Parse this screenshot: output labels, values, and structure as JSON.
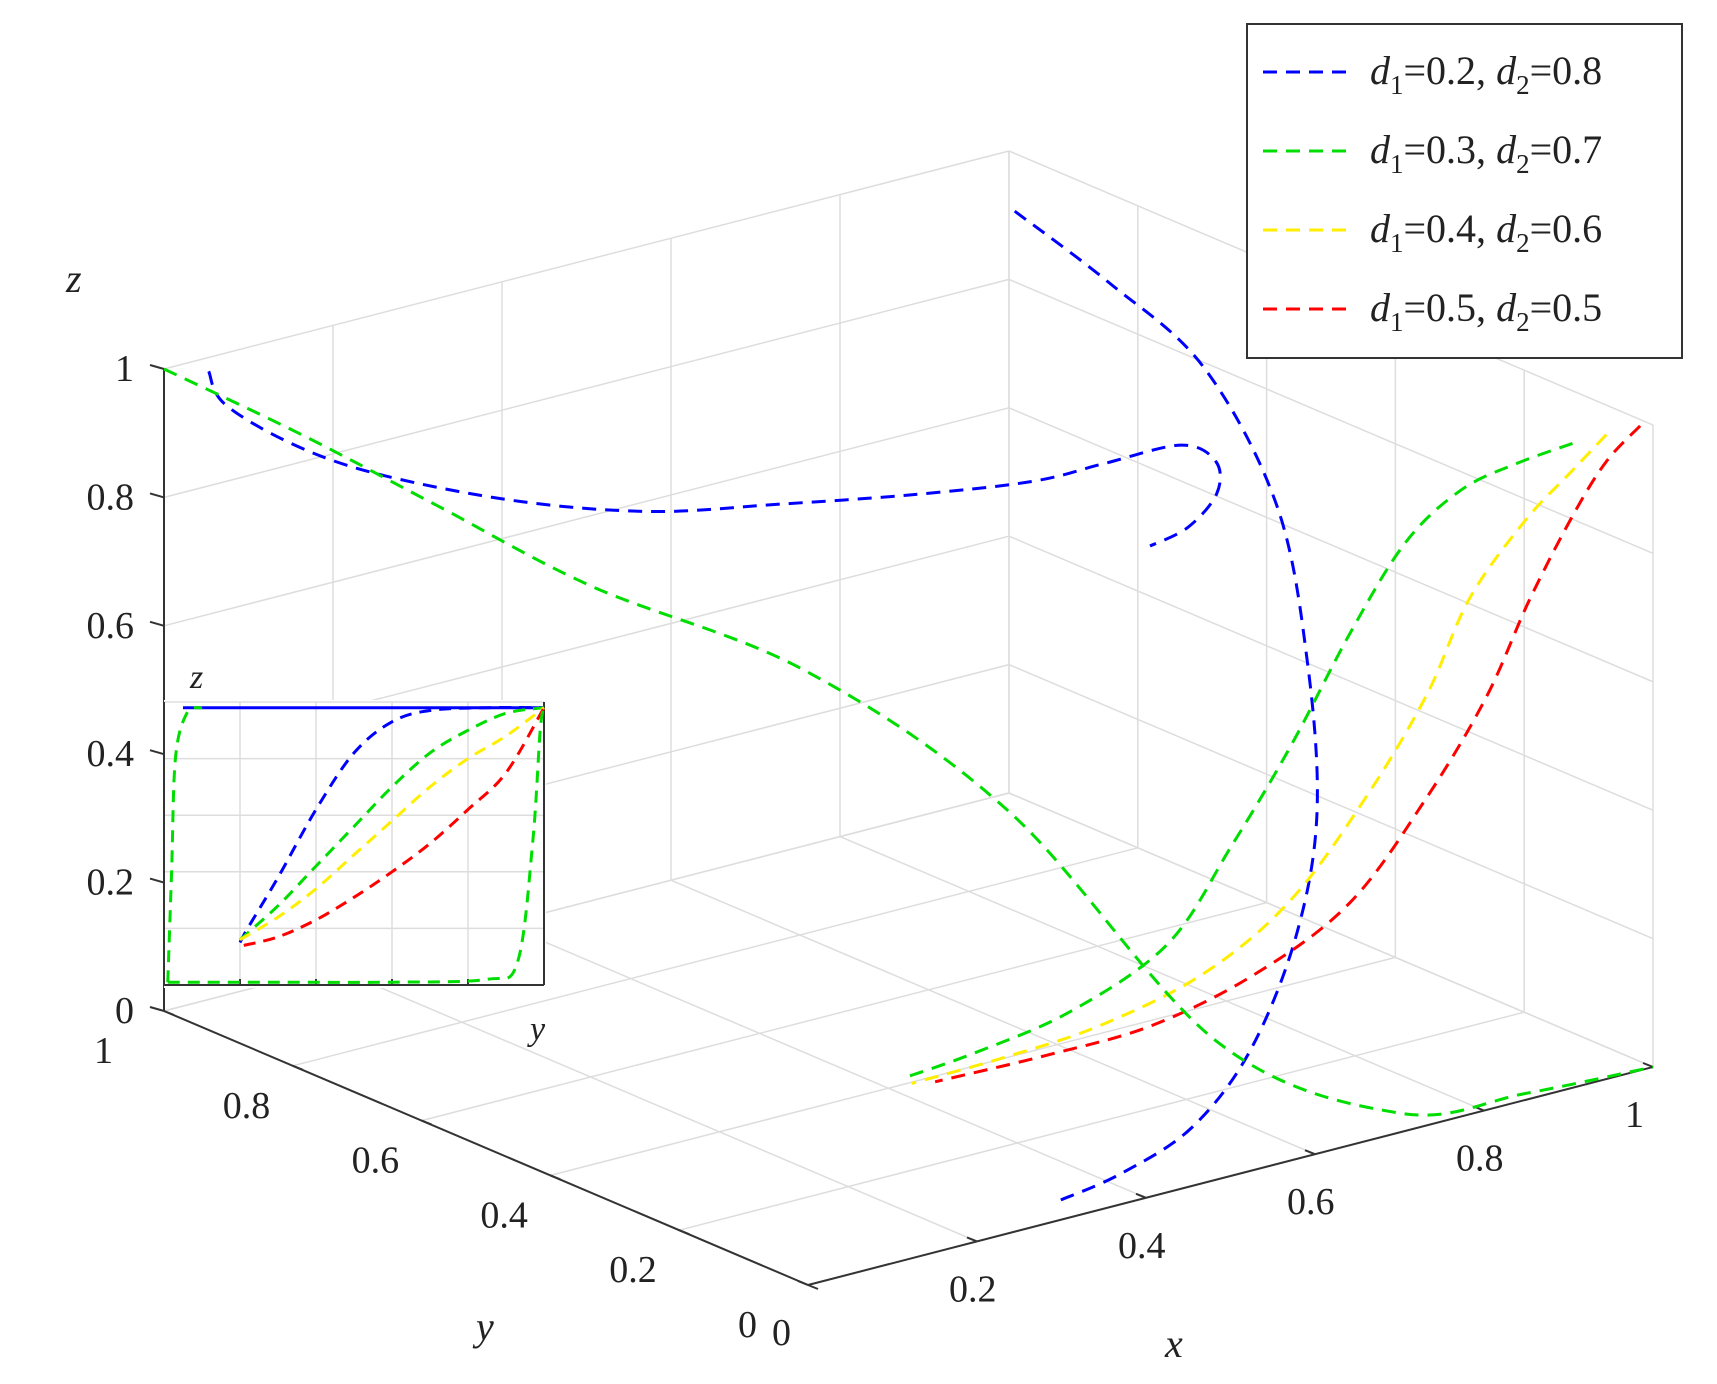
{
  "chart_data": {
    "type": "line",
    "projection": "3d",
    "axes": {
      "x": {
        "label": "x",
        "lim": [
          0,
          1
        ],
        "ticks": [
          "0",
          "0.2",
          "0.4",
          "0.6",
          "0.8",
          "1"
        ]
      },
      "y": {
        "label": "y",
        "lim": [
          0,
          1
        ],
        "ticks": [
          "0",
          "0.2",
          "0.4",
          "0.6",
          "0.8",
          "1"
        ]
      },
      "z": {
        "label": "z",
        "lim": [
          0,
          1
        ],
        "ticks": [
          "0",
          "0.2",
          "0.4",
          "0.6",
          "0.8",
          "1"
        ]
      }
    },
    "grid": true,
    "legend_position": "top-right",
    "legend": [
      {
        "color": "#0000ff",
        "d1": "0.2",
        "d2": "0.8"
      },
      {
        "color": "#00dd00",
        "d1": "0.3",
        "d2": "0.7"
      },
      {
        "color": "#ffee00",
        "d1": "0.4",
        "d2": "0.6"
      },
      {
        "color": "#ff0000",
        "d1": "0.5",
        "d2": "0.5"
      }
    ],
    "series": [
      {
        "color": "#0000ff",
        "points": [
          [
            0.03,
            0.97,
            0.999
          ],
          [
            0.05,
            0.97,
            0.94
          ],
          [
            0.12,
            0.95,
            0.86
          ],
          [
            0.2,
            0.92,
            0.8
          ],
          [
            0.3,
            0.84,
            0.76
          ],
          [
            0.38,
            0.74,
            0.76
          ],
          [
            0.45,
            0.64,
            0.79
          ],
          [
            0.53,
            0.54,
            0.82
          ],
          [
            0.6,
            0.44,
            0.86
          ],
          [
            0.64,
            0.38,
            0.9
          ],
          [
            0.64,
            0.26,
            0.98
          ],
          [
            0.62,
            0.18,
            0.995
          ],
          [
            0.56,
            0.1,
            1
          ],
          [
            0.48,
            0.04,
            1
          ],
          [
            0.42,
            0.02,
            1
          ]
        ]
      },
      {
        "color": "#0000ff",
        "points": [
          [
            0.9,
            0.86,
            1
          ],
          [
            0.89,
            0.7,
            0.96
          ],
          [
            0.88,
            0.54,
            0.9
          ],
          [
            0.86,
            0.4,
            0.75
          ],
          [
            0.82,
            0.3,
            0.56
          ],
          [
            0.77,
            0.22,
            0.38
          ],
          [
            0.7,
            0.16,
            0.24
          ],
          [
            0.6,
            0.1,
            0.12
          ],
          [
            0.5,
            0.06,
            0.05
          ],
          [
            0.4,
            0.04,
            0.02
          ],
          [
            0.32,
            0.03,
            0.01
          ]
        ]
      },
      {
        "color": "#00dd00",
        "points": [
          [
            0.92,
            0.02,
            0.99
          ],
          [
            0.9,
            0.08,
            0.94
          ],
          [
            0.88,
            0.14,
            0.88
          ],
          [
            0.86,
            0.2,
            0.78
          ],
          [
            0.84,
            0.26,
            0.62
          ],
          [
            0.8,
            0.3,
            0.44
          ],
          [
            0.76,
            0.34,
            0.28
          ],
          [
            0.7,
            0.36,
            0.14
          ],
          [
            0.6,
            0.38,
            0.06
          ],
          [
            0.5,
            0.4,
            0.02
          ],
          [
            0.42,
            0.4,
            0.01
          ]
        ]
      },
      {
        "color": "#ffee00",
        "points": [
          [
            0.96,
            0.02,
            0.99
          ],
          [
            0.95,
            0.06,
            0.92
          ],
          [
            0.94,
            0.12,
            0.82
          ],
          [
            0.92,
            0.18,
            0.68
          ],
          [
            0.9,
            0.22,
            0.52
          ],
          [
            0.86,
            0.26,
            0.36
          ],
          [
            0.8,
            0.3,
            0.2
          ],
          [
            0.72,
            0.33,
            0.1
          ],
          [
            0.62,
            0.36,
            0.04
          ],
          [
            0.52,
            0.38,
            0.015
          ],
          [
            0.42,
            0.39,
            0.005
          ]
        ]
      },
      {
        "color": "#ff0000",
        "points": [
          [
            1,
            0.02,
            0.99
          ],
          [
            0.99,
            0.06,
            0.92
          ],
          [
            0.98,
            0.1,
            0.82
          ],
          [
            0.96,
            0.14,
            0.68
          ],
          [
            0.94,
            0.18,
            0.52
          ],
          [
            0.9,
            0.22,
            0.36
          ],
          [
            0.84,
            0.26,
            0.2
          ],
          [
            0.76,
            0.3,
            0.1
          ],
          [
            0.66,
            0.33,
            0.04
          ],
          [
            0.56,
            0.36,
            0.015
          ],
          [
            0.44,
            0.38,
            0.005
          ]
        ]
      },
      {
        "color": "#00dd00",
        "points": [
          [
            0,
            1,
            1
          ],
          [
            0.01,
            0.8,
            0.98
          ],
          [
            0.02,
            0.6,
            0.95
          ],
          [
            0.05,
            0.4,
            0.9
          ],
          [
            0.15,
            0.2,
            0.82
          ],
          [
            0.3,
            0.08,
            0.6
          ],
          [
            0.5,
            0.02,
            0.2
          ],
          [
            0.7,
            0.0,
            0.03
          ],
          [
            0.85,
            0.0,
            0.01
          ],
          [
            1,
            0,
            0
          ]
        ]
      }
    ],
    "inset": {
      "type": "line",
      "xlabel": "y",
      "ylabel": "z",
      "curves": [
        {
          "color": "#0000ff",
          "points": [
            [
              0.05,
              0.98
            ],
            [
              0.2,
              0.98
            ],
            [
              0.4,
              0.98
            ],
            [
              0.6,
              0.98
            ],
            [
              0.8,
              0.98
            ],
            [
              1,
              0.98
            ]
          ]
        },
        {
          "color": "#0000ff",
          "points": [
            [
              0.2,
              0.15
            ],
            [
              0.22,
              0.2
            ],
            [
              0.3,
              0.38
            ],
            [
              0.4,
              0.62
            ],
            [
              0.5,
              0.82
            ],
            [
              0.6,
              0.93
            ],
            [
              0.7,
              0.97
            ],
            [
              0.85,
              0.98
            ],
            [
              1,
              0.98
            ]
          ]
        },
        {
          "color": "#00dd00",
          "points": [
            [
              0.2,
              0.16
            ],
            [
              0.3,
              0.28
            ],
            [
              0.4,
              0.42
            ],
            [
              0.5,
              0.56
            ],
            [
              0.6,
              0.7
            ],
            [
              0.7,
              0.82
            ],
            [
              0.8,
              0.9
            ],
            [
              0.9,
              0.96
            ],
            [
              1,
              0.98
            ]
          ]
        },
        {
          "color": "#ffee00",
          "points": [
            [
              0.2,
              0.16
            ],
            [
              0.3,
              0.24
            ],
            [
              0.4,
              0.34
            ],
            [
              0.5,
              0.46
            ],
            [
              0.6,
              0.58
            ],
            [
              0.7,
              0.7
            ],
            [
              0.8,
              0.8
            ],
            [
              0.9,
              0.88
            ],
            [
              1,
              0.98
            ]
          ]
        },
        {
          "color": "#ff0000",
          "points": [
            [
              0.21,
              0.14
            ],
            [
              0.3,
              0.17
            ],
            [
              0.4,
              0.23
            ],
            [
              0.5,
              0.31
            ],
            [
              0.6,
              0.4
            ],
            [
              0.7,
              0.5
            ],
            [
              0.8,
              0.62
            ],
            [
              0.9,
              0.75
            ],
            [
              1,
              0.98
            ]
          ]
        },
        {
          "color": "#00dd00",
          "points": [
            [
              0.01,
              0.01
            ],
            [
              0.02,
              0.4
            ],
            [
              0.03,
              0.8
            ],
            [
              0.06,
              0.96
            ],
            [
              0.1,
              0.98
            ]
          ]
        },
        {
          "color": "#00dd00",
          "points": [
            [
              0.01,
              0.01
            ],
            [
              0.3,
              0.01
            ],
            [
              0.6,
              0.01
            ],
            [
              0.85,
              0.02
            ],
            [
              0.93,
              0.08
            ],
            [
              0.97,
              0.5
            ],
            [
              0.99,
              0.9
            ],
            [
              1,
              0.98
            ]
          ]
        }
      ]
    }
  }
}
